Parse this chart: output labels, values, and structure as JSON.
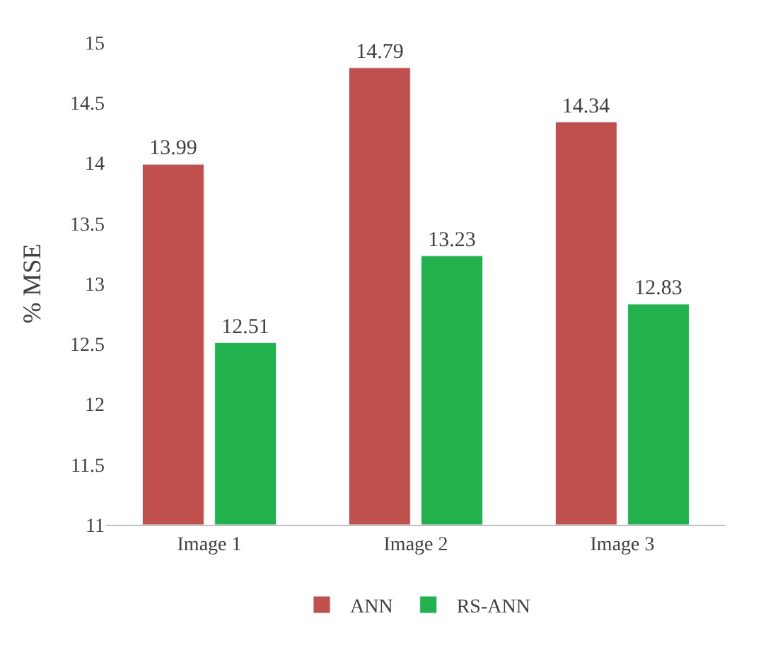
{
  "chart_data": {
    "type": "bar",
    "ylabel": "% MSE",
    "categories": [
      "Image 1",
      "Image 2",
      "Image 3"
    ],
    "series": [
      {
        "name": "ANN",
        "color": "#c0504d",
        "values": [
          13.99,
          14.79,
          14.34
        ]
      },
      {
        "name": "RS-ANN",
        "color": "#22b14c",
        "values": [
          12.51,
          13.23,
          12.83
        ]
      }
    ],
    "ylim": [
      11,
      15
    ],
    "yticks": [
      11,
      11.5,
      12,
      12.5,
      13,
      13.5,
      14,
      14.5,
      15
    ],
    "legend": "bottom",
    "data_labels": true
  }
}
